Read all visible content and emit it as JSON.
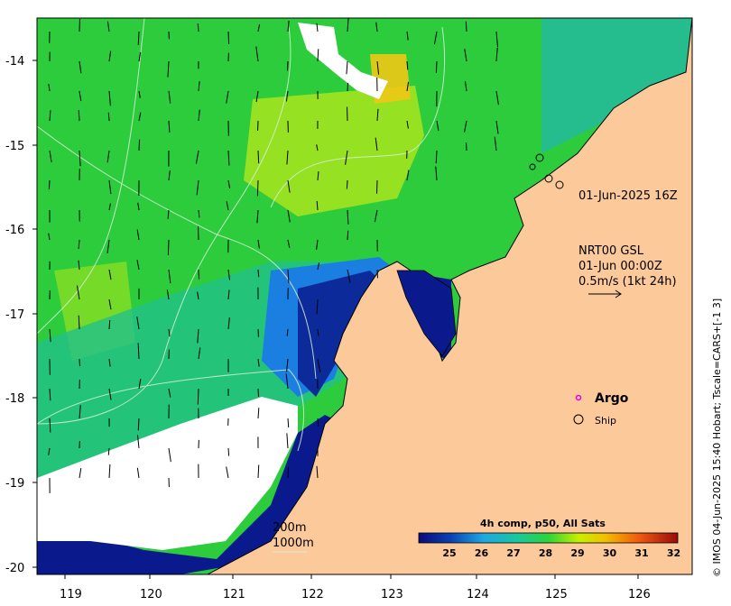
{
  "axes": {
    "x_ticks": [
      "119",
      "120",
      "121",
      "122",
      "123",
      "124",
      "125",
      "126"
    ],
    "y_ticks": [
      "-14",
      "-15",
      "-16",
      "-17",
      "-18",
      "-19",
      "-20"
    ]
  },
  "annotations": {
    "snapshot_time": "01-Jun-2025 16Z",
    "current_source": "NRT00 GSL",
    "current_time": "01-Jun 00:00Z",
    "vector_scale": "0.5m/s (1kt 24h)",
    "isobath_1": "200m",
    "isobath_2": "1000m"
  },
  "legend": {
    "argo_label": "Argo",
    "ship_label": "Ship"
  },
  "colorbar": {
    "title": "4h comp, p50, All Sats",
    "ticks": [
      "25",
      "26",
      "27",
      "28",
      "29",
      "30",
      "31",
      "32"
    ]
  },
  "credit": "© IMOS 04-Jun-2025 15:40 Hobart; Tscale=CARS+[-1 3]",
  "colors": {
    "land": "#fcc99a",
    "no_data": "#ffffff",
    "warm": "#d4f000",
    "mid": "#22c84a",
    "cool": "#1e6fd8",
    "cold": "#0a1a8c",
    "argo": "#e000e0"
  }
}
